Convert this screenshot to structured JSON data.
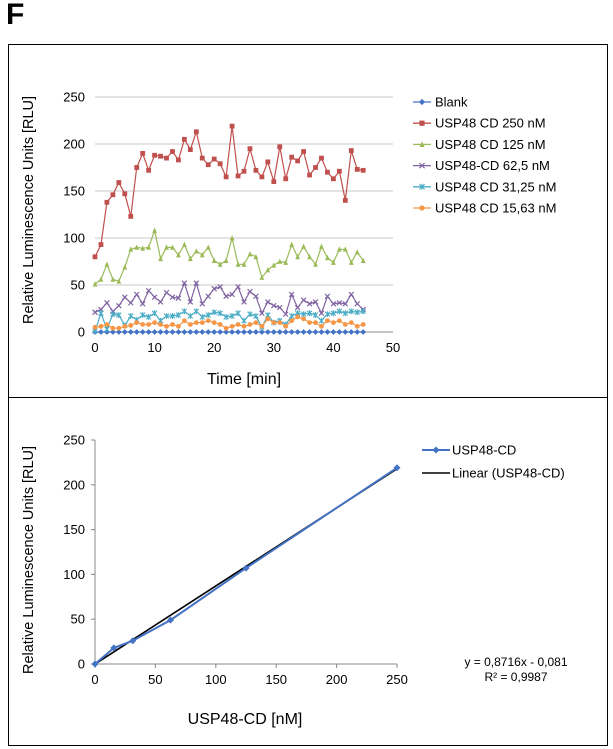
{
  "panel_label": "F",
  "chart_data": [
    {
      "type": "line",
      "xlabel": "Time [min]",
      "ylabel": "Relative Luminescence Units [RLU]",
      "xlim": [
        0,
        50
      ],
      "ylim": [
        0,
        250
      ],
      "xticks": [
        "0",
        "10",
        "20",
        "30",
        "40",
        "50"
      ],
      "yticks": [
        "0",
        "50",
        "100",
        "150",
        "200",
        "250"
      ],
      "grid": "horizontal",
      "legend_position": "right",
      "x": [
        0,
        1,
        2,
        3,
        4,
        5,
        6,
        7,
        8,
        9,
        10,
        11,
        12,
        13,
        14,
        15,
        16,
        17,
        18,
        19,
        20,
        21,
        22,
        23,
        24,
        25,
        26,
        27,
        28,
        29,
        30,
        31,
        32,
        33,
        34,
        35,
        36,
        37,
        38,
        39,
        40,
        41,
        42,
        43,
        44,
        45
      ],
      "series": [
        {
          "name": "Blank",
          "color": "#4472c4",
          "marker": "diamond",
          "values": [
            0,
            0,
            0,
            0,
            0,
            0,
            0,
            0,
            0,
            0,
            0,
            0,
            0,
            0,
            0,
            0,
            0,
            0,
            0,
            0,
            0,
            0,
            0,
            0,
            0,
            0,
            0,
            0,
            0,
            0,
            0,
            0,
            0,
            0,
            0,
            0,
            0,
            0,
            0,
            0,
            0,
            0,
            0,
            0,
            0,
            0
          ]
        },
        {
          "name": "USP48 CD 250 nM",
          "color": "#c0504d",
          "marker": "square",
          "values": [
            80,
            93,
            138,
            146,
            159,
            147,
            123,
            175,
            190,
            172,
            188,
            187,
            185,
            192,
            183,
            205,
            194,
            213,
            185,
            178,
            184,
            179,
            165,
            219,
            166,
            171,
            195,
            172,
            165,
            181,
            160,
            197,
            163,
            186,
            182,
            192,
            167,
            175,
            185,
            170,
            163,
            171,
            140,
            193,
            173,
            172
          ]
        },
        {
          "name": "USP48 CD 125 nM",
          "color": "#9bbb59",
          "marker": "triangle",
          "values": [
            51,
            56,
            72,
            56,
            54,
            69,
            88,
            90,
            89,
            90,
            108,
            78,
            90,
            90,
            82,
            93,
            78,
            86,
            82,
            90,
            76,
            72,
            76,
            100,
            72,
            72,
            83,
            80,
            58,
            66,
            71,
            75,
            74,
            93,
            80,
            91,
            80,
            72,
            91,
            79,
            74,
            88,
            88,
            74,
            85,
            76
          ]
        },
        {
          "name": "USP48-CD 62,5 nM",
          "color": "#8064a2",
          "marker": "x",
          "values": [
            21,
            24,
            31,
            22,
            28,
            37,
            31,
            40,
            30,
            44,
            37,
            32,
            42,
            37,
            36,
            52,
            32,
            52,
            30,
            38,
            46,
            48,
            38,
            40,
            48,
            32,
            43,
            38,
            20,
            32,
            28,
            26,
            19,
            40,
            26,
            34,
            30,
            32,
            20,
            38,
            30,
            31,
            30,
            40,
            30,
            24
          ]
        },
        {
          "name": "USP48 CD 31,25 nM",
          "color": "#4bacc6",
          "marker": "star",
          "values": [
            1,
            20,
            3,
            19,
            18,
            7,
            17,
            13,
            18,
            16,
            20,
            12,
            17,
            17,
            18,
            22,
            17,
            22,
            16,
            18,
            21,
            20,
            16,
            17,
            20,
            12,
            19,
            17,
            5,
            18,
            10,
            12,
            8,
            17,
            20,
            19,
            20,
            18,
            12,
            19,
            20,
            22,
            20,
            22,
            21,
            22
          ]
        },
        {
          "name": "USP48 CD 15,63 nM",
          "color": "#f79646",
          "marker": "circle",
          "values": [
            5,
            6,
            8,
            4,
            4,
            6,
            7,
            10,
            8,
            8,
            10,
            8,
            6,
            8,
            6,
            12,
            8,
            10,
            10,
            12,
            10,
            8,
            4,
            6,
            8,
            6,
            8,
            10,
            6,
            14,
            10,
            10,
            6,
            12,
            16,
            14,
            10,
            10,
            6,
            12,
            10,
            12,
            8,
            10,
            6,
            8
          ]
        }
      ]
    },
    {
      "type": "scatter",
      "xlabel": "USP48-CD [nM]",
      "ylabel": "Relative Luminescence Units [RLU]",
      "xlim": [
        0,
        250
      ],
      "ylim": [
        0,
        250
      ],
      "xticks": [
        "0",
        "50",
        "100",
        "150",
        "200",
        "250"
      ],
      "yticks": [
        "0",
        "50",
        "100",
        "150",
        "200",
        "250"
      ],
      "grid": "none",
      "legend_position": "top-right",
      "series": [
        {
          "name": "USP48-CD",
          "color": "#4472c4",
          "marker": "diamond",
          "x": [
            0,
            15.63,
            31.25,
            62.5,
            125,
            250
          ],
          "y": [
            0,
            18,
            26,
            49,
            107,
            219
          ]
        },
        {
          "name": "Linear (USP48-CD)",
          "color": "#000000",
          "type": "trendline",
          "slope": 0.8716,
          "intercept": -0.081
        }
      ],
      "equation": "y = 0,8716x - 0,081",
      "r_squared": "R² = 0,9987"
    }
  ]
}
